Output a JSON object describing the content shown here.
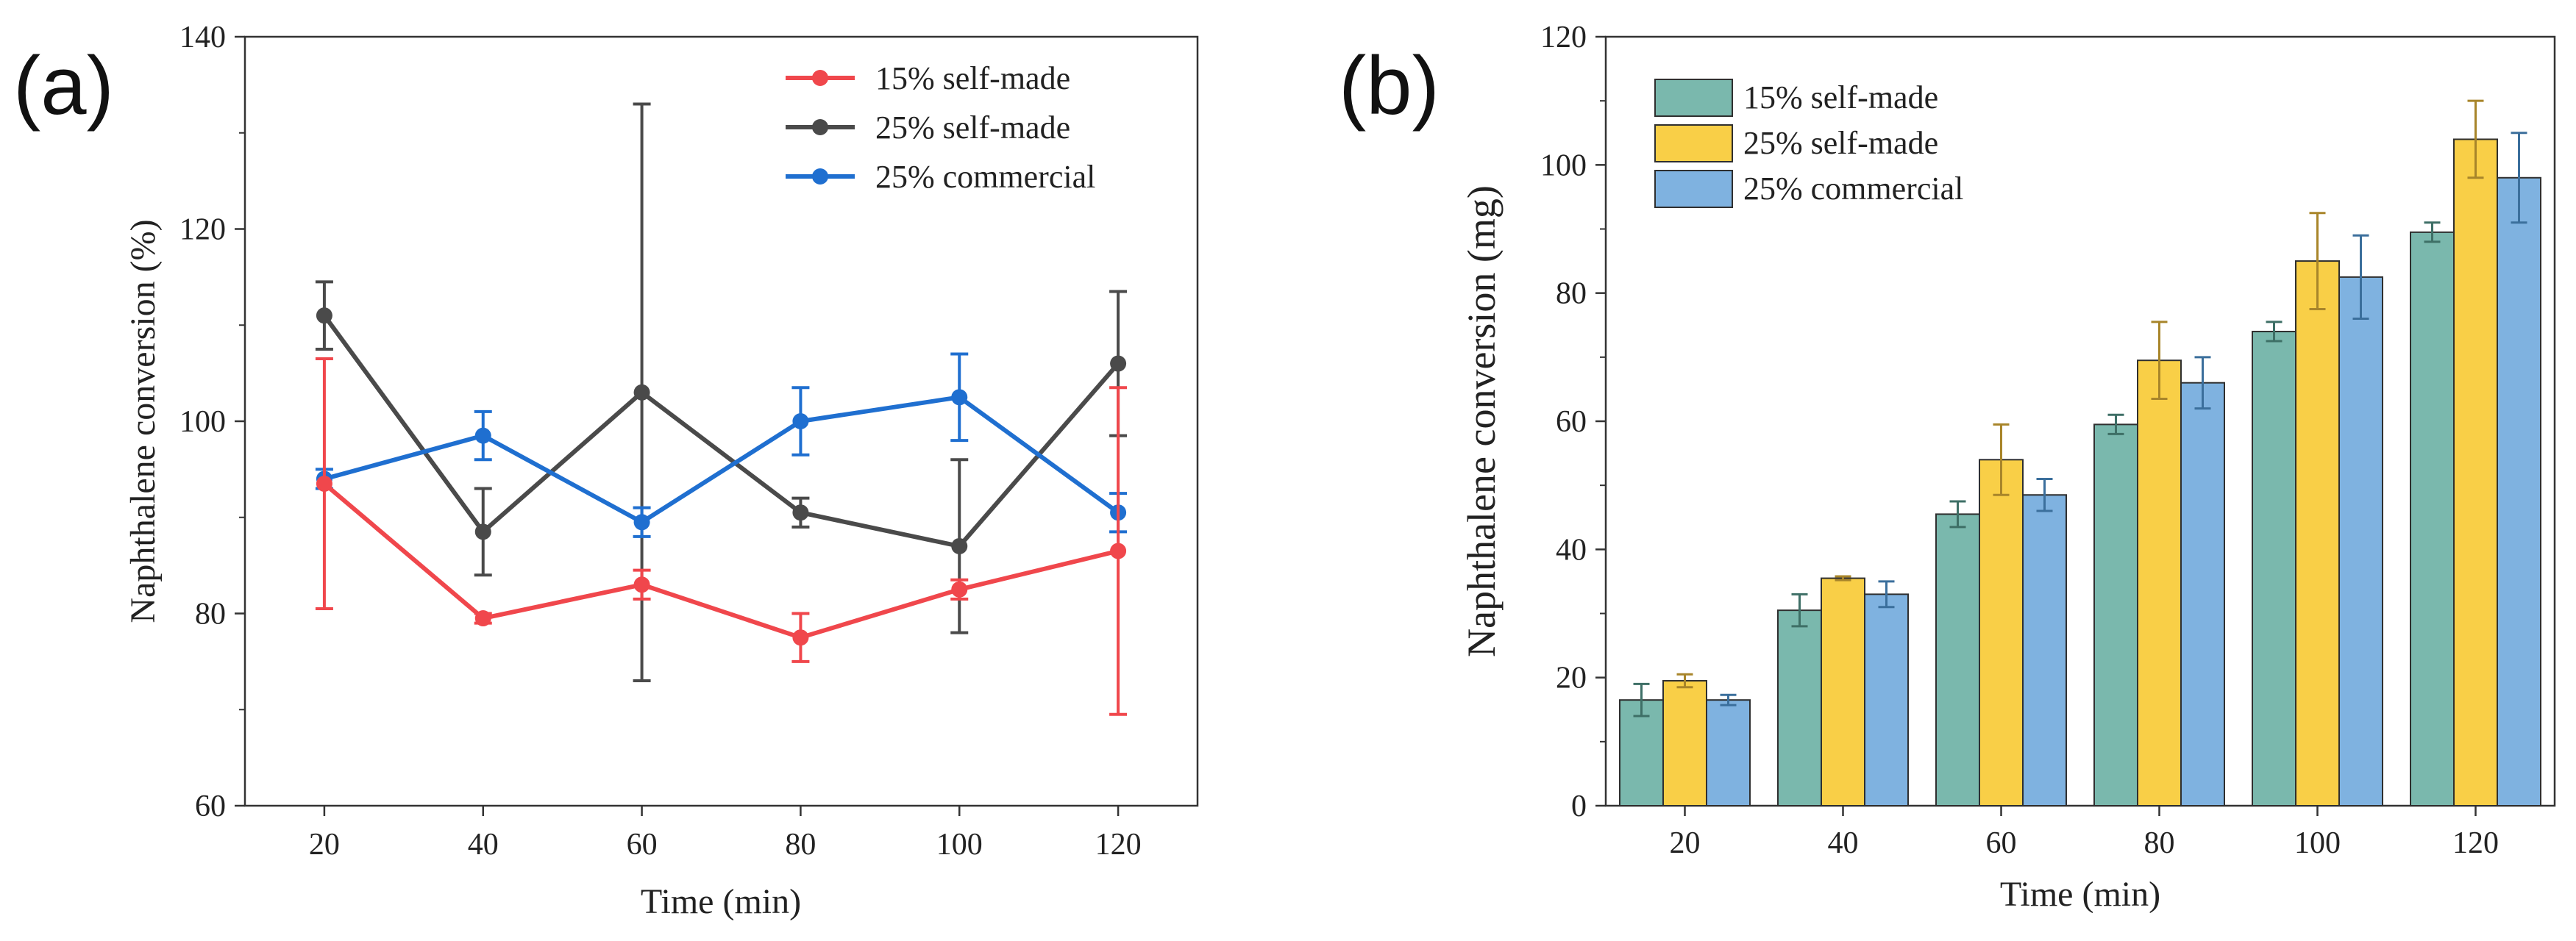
{
  "chart_data": [
    {
      "panel_label": "(a)",
      "type": "line",
      "title": "",
      "xlabel": "Time (min)",
      "ylabel": "Naphthalene conversion (%)",
      "x": [
        20,
        40,
        60,
        80,
        100,
        120
      ],
      "xlim": [
        10,
        130
      ],
      "ylim": [
        60,
        140
      ],
      "xticks": [
        "20",
        "40",
        "60",
        "80",
        "100",
        "120"
      ],
      "yticks": [
        "60",
        "80",
        "100",
        "120",
        "140"
      ],
      "legend_position": "top-right",
      "grid": false,
      "series": [
        {
          "name": "15%  self-made",
          "color": "#f0474c",
          "values": [
            93.5,
            79.5,
            83,
            77.5,
            82.5,
            86.5
          ],
          "errors": [
            13,
            0.5,
            1.5,
            2.5,
            1,
            17
          ]
        },
        {
          "name": "25%  self-made",
          "color": "#4a4a4a",
          "values": [
            111,
            88.5,
            103,
            90.5,
            87,
            106
          ],
          "errors": [
            3.5,
            4.5,
            30,
            1.5,
            9,
            7.5
          ]
        },
        {
          "name": "25%  commercial",
          "color": "#1f6fd0",
          "values": [
            94,
            98.5,
            89.5,
            100,
            102.5,
            90.5
          ],
          "errors": [
            1,
            2.5,
            1.5,
            3.5,
            4.5,
            2
          ]
        }
      ]
    },
    {
      "panel_label": "(b)",
      "type": "bar",
      "title": "",
      "xlabel": "Time (min)",
      "ylabel": "Naphthalene conversion (mg)",
      "categories": [
        "20",
        "40",
        "60",
        "80",
        "100",
        "120"
      ],
      "ylim": [
        0,
        120
      ],
      "yticks": [
        "0",
        "20",
        "40",
        "60",
        "80",
        "100",
        "120"
      ],
      "legend_position": "top-left",
      "grid": false,
      "series": [
        {
          "name": "15% self-made",
          "color": "#7ab8ad",
          "values": [
            16.5,
            30.5,
            45.5,
            59.5,
            74,
            89.5
          ],
          "errors": [
            2.5,
            2.5,
            2,
            1.5,
            1.5,
            1.5
          ]
        },
        {
          "name": "25% self-made",
          "color": "#f9cf47",
          "values": [
            19.5,
            35.5,
            54,
            69.5,
            85,
            104
          ],
          "errors": [
            1,
            0.3,
            5.5,
            6,
            7.5,
            6
          ]
        },
        {
          "name": "25% commercial",
          "color": "#7fb2e0",
          "values": [
            16.5,
            33,
            48.5,
            66,
            82.5,
            98
          ],
          "errors": [
            0.8,
            2,
            2.5,
            4,
            6.5,
            7
          ]
        }
      ]
    }
  ]
}
